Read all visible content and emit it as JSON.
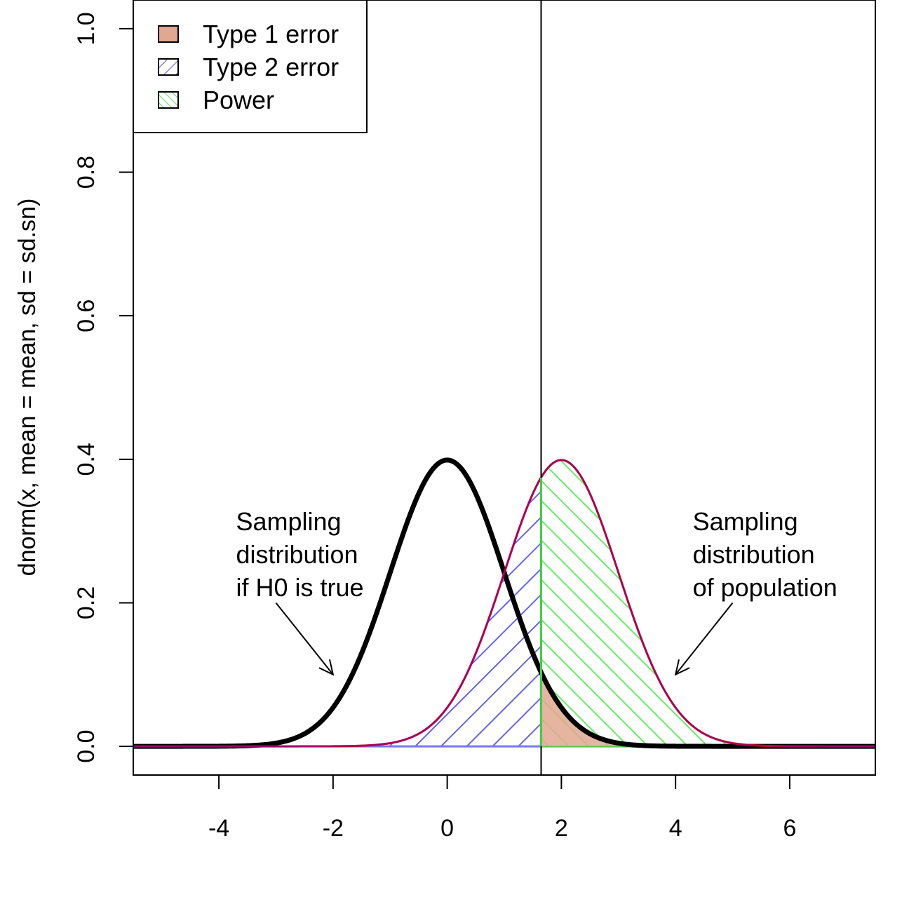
{
  "chart_data": {
    "type": "area",
    "title": "",
    "xlabel": "",
    "ylabel": "dnorm(x, mean = mean, sd = sd.sn)",
    "xlim": [
      -5.5,
      7.5
    ],
    "ylim": [
      -0.04,
      1.04
    ],
    "x_ticks": [
      -4,
      -2,
      0,
      2,
      4,
      6
    ],
    "y_ticks": [
      0.0,
      0.2,
      0.4,
      0.6,
      0.8,
      1.0
    ],
    "x_tick_labels": [
      "-4",
      "-2",
      "0",
      "2",
      "4",
      "6"
    ],
    "y_tick_labels": [
      "0.0",
      "0.2",
      "0.4",
      "0.6",
      "0.8",
      "1.0"
    ],
    "critical_value": 1.645,
    "null_distribution": {
      "mean": 0,
      "sd": 1,
      "color": "#000000"
    },
    "alternative_distribution": {
      "mean": 2,
      "sd": 1,
      "color": "#cc0033"
    },
    "legend": {
      "position": "top-left",
      "entries": [
        {
          "label": "Type 1 error",
          "fill": "#e0a890",
          "pattern": "solid"
        },
        {
          "label": "Type 2 error",
          "fill": "#5555ee",
          "pattern": "hatch-forward"
        },
        {
          "label": "Power",
          "fill": "#55ee55",
          "pattern": "hatch-back"
        }
      ]
    },
    "annotations": [
      {
        "lines": [
          "Sampling",
          "distribution",
          "if H0 is true"
        ],
        "text_anchor": [
          -3.7,
          0.29
        ],
        "arrow_from": [
          -3.0,
          0.2
        ],
        "arrow_to": [
          -2.0,
          0.1
        ]
      },
      {
        "lines": [
          "Sampling",
          "distribution",
          "of population"
        ],
        "text_anchor": [
          4.3,
          0.29
        ],
        "arrow_from": [
          5.0,
          0.2
        ],
        "arrow_to": [
          4.0,
          0.1
        ]
      }
    ]
  }
}
